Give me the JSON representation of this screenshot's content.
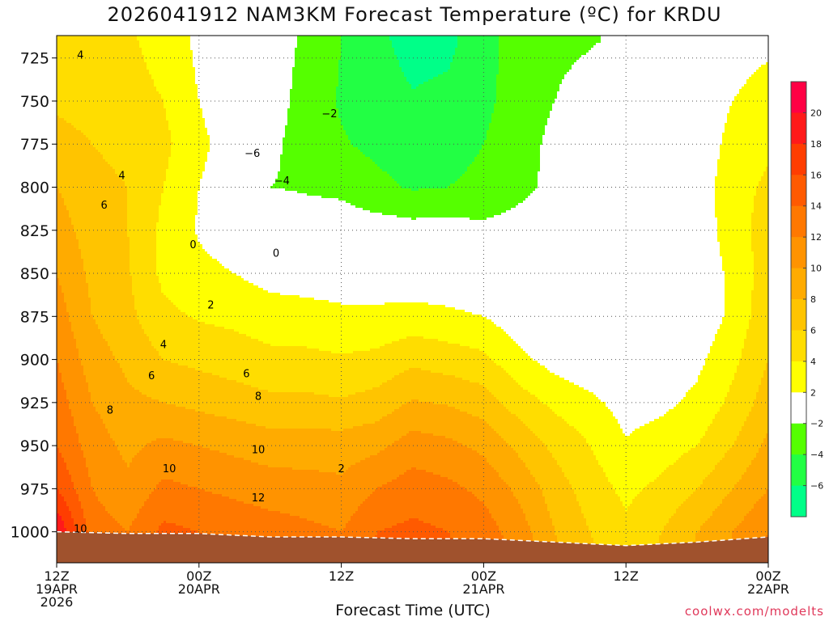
{
  "chart_data": {
    "type": "heatmap",
    "title": "2026041912 NAM3KM Forecast Temperature (ºC) for KRDU",
    "xlabel": "Forecast Time (UTC)",
    "ylabel": "",
    "credit": "coolwx.com/modelts",
    "x_ticks": [
      {
        "label": "12Z",
        "date": "19APR",
        "year": "2026",
        "hour": 0
      },
      {
        "label": "00Z",
        "date": "20APR",
        "year": "",
        "hour": 12
      },
      {
        "label": "12Z",
        "date": "",
        "year": "",
        "hour": 24
      },
      {
        "label": "00Z",
        "date": "21APR",
        "year": "",
        "hour": 36
      },
      {
        "label": "12Z",
        "date": "",
        "year": "",
        "hour": 48
      },
      {
        "label": "00Z",
        "date": "22APR",
        "year": "",
        "hour": 60
      }
    ],
    "xlim_hours": [
      0,
      60
    ],
    "y_ticks": [
      725,
      750,
      775,
      800,
      825,
      850,
      875,
      900,
      925,
      950,
      975,
      1000
    ],
    "ylim_hpa": [
      712,
      1018
    ],
    "colorbar": {
      "labels": [
        "20",
        "18",
        "16",
        "14",
        "12",
        "10",
        "8",
        "6",
        "4",
        "2",
        "−2",
        "−4",
        "−6"
      ],
      "bins": [
        {
          "min": 20,
          "max": 22,
          "color": "#ff0044"
        },
        {
          "min": 18,
          "max": 20,
          "color": "#ff1a1a"
        },
        {
          "min": 16,
          "max": 18,
          "color": "#ff3d00"
        },
        {
          "min": 14,
          "max": 16,
          "color": "#ff5a00"
        },
        {
          "min": 12,
          "max": 14,
          "color": "#ff7800"
        },
        {
          "min": 10,
          "max": 12,
          "color": "#ff9300"
        },
        {
          "min": 8,
          "max": 10,
          "color": "#ffab00"
        },
        {
          "min": 6,
          "max": 8,
          "color": "#ffc400"
        },
        {
          "min": 4,
          "max": 6,
          "color": "#ffdd00"
        },
        {
          "min": 2,
          "max": 4,
          "color": "#ffff00"
        },
        {
          "min": -2,
          "max": 2,
          "color": "#ffffff"
        },
        {
          "min": -4,
          "max": -2,
          "color": "#55ff00"
        },
        {
          "min": -6,
          "max": -4,
          "color": "#22ff44"
        },
        {
          "min": -8,
          "max": -6,
          "color": "#00ff88"
        }
      ]
    },
    "ground_color": "#a0522d",
    "surface_pressure": [
      [
        0,
        1000
      ],
      [
        6,
        1001
      ],
      [
        12,
        1001
      ],
      [
        18,
        1003
      ],
      [
        24,
        1003
      ],
      [
        30,
        1004
      ],
      [
        36,
        1004
      ],
      [
        42,
        1006
      ],
      [
        48,
        1008
      ],
      [
        54,
        1006
      ],
      [
        60,
        1003
      ]
    ],
    "temperature_field": {
      "hours": [
        0,
        3,
        6,
        9,
        12,
        15,
        18,
        21,
        24,
        27,
        30,
        33,
        36,
        39,
        42,
        45,
        48,
        51,
        54,
        57,
        60
      ],
      "levels": [
        {
          "p": 715,
          "t": [
            4.0,
            4.2,
            4.2,
            3.5,
            1.5,
            0.5,
            -0.5,
            -2.5,
            -4.0,
            -5.5,
            -6.8,
            -6.5,
            -4.8,
            -3.0,
            -2.5,
            -2.2,
            -1.5,
            -0.5,
            0.5,
            1.0,
            1.5
          ]
        },
        {
          "p": 750,
          "t": [
            5.5,
            5.0,
            4.5,
            4.0,
            2.0,
            0.5,
            -0.8,
            -3.0,
            -4.2,
            -5.0,
            -5.8,
            -5.5,
            -4.5,
            -3.0,
            -2.0,
            -1.0,
            0.0,
            0.5,
            1.0,
            2.0,
            3.0
          ]
        },
        {
          "p": 775,
          "t": [
            7.0,
            6.0,
            5.5,
            4.5,
            2.5,
            1.0,
            -1.5,
            -3.0,
            -3.8,
            -4.5,
            -5.0,
            -4.8,
            -4.0,
            -2.8,
            -1.5,
            -0.8,
            0.0,
            0.5,
            1.0,
            2.5,
            3.5
          ]
        },
        {
          "p": 800,
          "t": [
            8.0,
            6.5,
            6.0,
            4.0,
            2.0,
            0.5,
            -2.0,
            -2.3,
            -2.5,
            -3.5,
            -4.2,
            -4.0,
            -3.5,
            -2.5,
            -1.5,
            -0.8,
            -0.2,
            0.5,
            1.0,
            3.0,
            4.5
          ]
        },
        {
          "p": 825,
          "t": [
            9.0,
            7.0,
            6.0,
            3.5,
            1.8,
            1.0,
            0.5,
            -0.5,
            -0.8,
            -1.0,
            -1.2,
            -1.2,
            -1.5,
            -1.2,
            -1.0,
            -0.8,
            -0.5,
            0.2,
            0.8,
            3.0,
            5.0
          ]
        },
        {
          "p": 850,
          "t": [
            10.0,
            7.5,
            6.2,
            3.5,
            2.5,
            2.0,
            1.2,
            1.0,
            0.8,
            0.7,
            0.5,
            0.3,
            -0.2,
            -0.8,
            -1.2,
            -1.2,
            -1.0,
            -0.5,
            0.5,
            2.5,
            5.0
          ]
        },
        {
          "p": 875,
          "t": [
            11.0,
            8.0,
            6.5,
            4.5,
            3.8,
            3.5,
            3.0,
            2.8,
            2.5,
            2.5,
            2.8,
            2.5,
            2.0,
            0.8,
            0.0,
            -0.5,
            -0.8,
            -0.5,
            0.5,
            2.5,
            5.5
          ]
        },
        {
          "p": 900,
          "t": [
            12.0,
            9.0,
            7.5,
            6.0,
            5.5,
            5.0,
            4.5,
            4.5,
            4.2,
            4.5,
            5.5,
            5.0,
            4.5,
            2.5,
            1.2,
            0.5,
            -0.5,
            0.5,
            1.5,
            3.5,
            6.0
          ]
        },
        {
          "p": 925,
          "t": [
            13.0,
            10.0,
            8.5,
            8.0,
            7.5,
            7.0,
            6.5,
            6.5,
            6.2,
            6.8,
            8.2,
            7.8,
            7.0,
            5.0,
            3.5,
            2.5,
            1.2,
            1.5,
            2.5,
            4.5,
            7.0
          ]
        },
        {
          "p": 950,
          "t": [
            14.0,
            11.0,
            9.5,
            10.5,
            10.0,
            9.5,
            9.0,
            9.0,
            9.0,
            9.5,
            11.0,
            10.5,
            9.5,
            7.5,
            5.5,
            4.0,
            2.2,
            3.0,
            4.0,
            6.0,
            8.5
          ]
        },
        {
          "p": 975,
          "t": [
            16.0,
            12.0,
            10.5,
            12.5,
            12.0,
            11.5,
            11.0,
            10.8,
            10.5,
            12.0,
            13.0,
            12.5,
            11.5,
            9.5,
            7.0,
            5.0,
            3.5,
            4.5,
            6.0,
            8.0,
            10.0
          ]
        },
        {
          "p": 1000,
          "t": [
            20.0,
            13.0,
            12.0,
            14.5,
            14.0,
            13.5,
            13.0,
            12.5,
            12.0,
            14.0,
            14.5,
            14.0,
            13.0,
            11.0,
            8.0,
            6.0,
            4.5,
            6.0,
            8.0,
            10.0,
            12.0
          ]
        },
        {
          "p": 1018,
          "t": [
            22.0,
            13.5,
            12.5,
            15.0,
            14.5,
            14.0,
            13.5,
            13.0,
            12.5,
            14.5,
            15.0,
            14.5,
            13.5,
            11.5,
            8.5,
            6.5,
            5.0,
            6.5,
            8.5,
            10.5,
            12.5
          ]
        }
      ]
    },
    "contour_labels": [
      {
        "text": "4",
        "hour": 2.0,
        "p": 723
      },
      {
        "text": "6",
        "hour": 4.0,
        "p": 810
      },
      {
        "text": "4",
        "hour": 5.5,
        "p": 793
      },
      {
        "text": "8",
        "hour": 4.5,
        "p": 929
      },
      {
        "text": "10",
        "hour": 2.0,
        "p": 998
      },
      {
        "text": "0",
        "hour": 11.5,
        "p": 833
      },
      {
        "text": "2",
        "hour": 13.0,
        "p": 868
      },
      {
        "text": "4",
        "hour": 9.0,
        "p": 891
      },
      {
        "text": "6",
        "hour": 8.0,
        "p": 909
      },
      {
        "text": "10",
        "hour": 9.5,
        "p": 963
      },
      {
        "text": "6",
        "hour": 16.0,
        "p": 908
      },
      {
        "text": "8",
        "hour": 17.0,
        "p": 921
      },
      {
        "text": "10",
        "hour": 17.0,
        "p": 952
      },
      {
        "text": "12",
        "hour": 17.0,
        "p": 980
      },
      {
        "text": "−6",
        "hour": 16.5,
        "p": 780
      },
      {
        "text": "−4",
        "hour": 19.0,
        "p": 796
      },
      {
        "text": "0",
        "hour": 18.5,
        "p": 838
      },
      {
        "text": "−2",
        "hour": 23.0,
        "p": 757
      },
      {
        "text": "2",
        "hour": 24.0,
        "p": 963
      }
    ]
  }
}
